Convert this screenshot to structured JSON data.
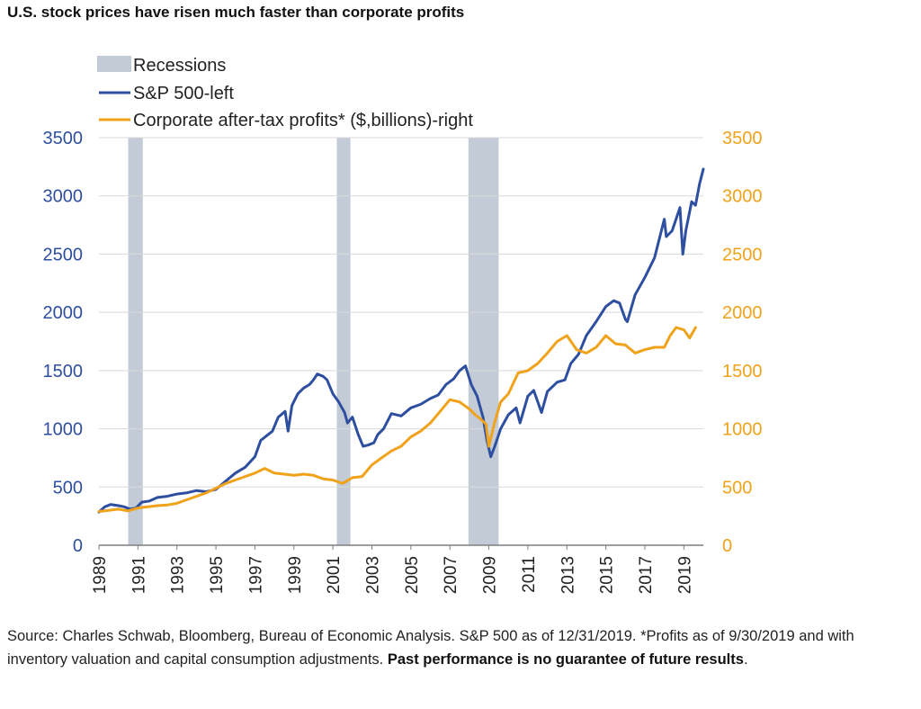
{
  "title": "U.S. stock prices have risen much faster than corporate profits",
  "source": {
    "text": "Source: Charles Schwab, Bloomberg, Bureau of Economic Analysis. S&P 500 as of 12/31/2019. *Profits as of 9/30/2019 and with inventory valuation and capital consumption adjustments. ",
    "bold": "Past performance is no guarantee of future results",
    "end": "."
  },
  "colors": {
    "sp500": "#2e4fa0",
    "profits": "#f0a21a",
    "recession": "#c3ccd6",
    "grid": "#d9d9d9",
    "left_axis": "#2e4fa0",
    "right_axis": "#f0a21a"
  },
  "chart_data": {
    "type": "line",
    "legend_position": "top-left",
    "legend": [
      {
        "key": "recession",
        "label": "Recessions"
      },
      {
        "key": "sp500",
        "label": "S&P 500-left"
      },
      {
        "key": "profits",
        "label": "Corporate after-tax profits* ($,billions)-right"
      }
    ],
    "x_ticks": [
      "1989",
      "1991",
      "1993",
      "1995",
      "1997",
      "1999",
      "2001",
      "2003",
      "2005",
      "2007",
      "2009",
      "2011",
      "2013",
      "2015",
      "2017",
      "2019"
    ],
    "xlim": [
      1989,
      2020
    ],
    "ylim_left": [
      0,
      3500
    ],
    "ylim_right": [
      0,
      3500
    ],
    "y_ticks_left": [
      "0",
      "500",
      "1000",
      "1500",
      "2000",
      "2500",
      "3000",
      "3500"
    ],
    "y_ticks_right": [
      "0",
      "500",
      "1000",
      "1500",
      "2000",
      "2500",
      "3000",
      "3500"
    ],
    "grid": true,
    "recessions": [
      [
        1990.5,
        1991.25
      ],
      [
        2001.2,
        2001.9
      ],
      [
        2007.95,
        2009.5
      ]
    ],
    "series": [
      {
        "name": "S&P 500-left",
        "axis": "left",
        "x": [
          1989.0,
          1989.3,
          1989.6,
          1990.0,
          1990.3,
          1990.6,
          1990.9,
          1991.2,
          1991.6,
          1992.0,
          1992.5,
          1993.0,
          1993.5,
          1994.0,
          1994.5,
          1995.0,
          1995.5,
          1996.0,
          1996.5,
          1997.0,
          1997.3,
          1997.6,
          1997.9,
          1998.2,
          1998.55,
          1998.7,
          1998.9,
          1999.2,
          1999.5,
          1999.8,
          2000.0,
          2000.2,
          2000.5,
          2000.7,
          2001.0,
          2001.3,
          2001.6,
          2001.75,
          2002.0,
          2002.3,
          2002.55,
          2002.8,
          2003.1,
          2003.3,
          2003.6,
          2004.0,
          2004.5,
          2005.0,
          2005.5,
          2006.0,
          2006.4,
          2006.8,
          2007.2,
          2007.5,
          2007.8,
          2008.1,
          2008.4,
          2008.7,
          2008.9,
          2009.1,
          2009.3,
          2009.6,
          2010.0,
          2010.4,
          2010.6,
          2011.0,
          2011.3,
          2011.7,
          2012.0,
          2012.5,
          2012.9,
          2013.2,
          2013.6,
          2014.0,
          2014.5,
          2015.0,
          2015.4,
          2015.7,
          2016.0,
          2016.1,
          2016.5,
          2017.0,
          2017.5,
          2018.0,
          2018.1,
          2018.4,
          2018.8,
          2018.95,
          2019.1,
          2019.4,
          2019.6,
          2019.8,
          2020.0
        ],
        "values": [
          285,
          330,
          350,
          340,
          330,
          310,
          320,
          370,
          380,
          410,
          420,
          440,
          450,
          470,
          460,
          480,
          550,
          620,
          670,
          760,
          900,
          940,
          980,
          1100,
          1150,
          980,
          1200,
          1300,
          1350,
          1380,
          1420,
          1470,
          1450,
          1420,
          1300,
          1230,
          1140,
          1050,
          1100,
          950,
          850,
          860,
          880,
          950,
          1000,
          1130,
          1110,
          1180,
          1210,
          1260,
          1290,
          1380,
          1430,
          1500,
          1540,
          1380,
          1280,
          1100,
          900,
          760,
          850,
          1000,
          1120,
          1180,
          1050,
          1280,
          1330,
          1140,
          1320,
          1400,
          1420,
          1560,
          1640,
          1800,
          1920,
          2050,
          2100,
          2080,
          1940,
          1920,
          2150,
          2300,
          2470,
          2800,
          2650,
          2700,
          2900,
          2500,
          2700,
          2950,
          2920,
          3100,
          3230
        ]
      },
      {
        "name": "Corporate after-tax profits* ($,billions)-right",
        "axis": "right",
        "x": [
          1989.0,
          1989.5,
          1990.0,
          1990.5,
          1991.0,
          1991.5,
          1992.0,
          1992.5,
          1993.0,
          1993.5,
          1994.0,
          1994.5,
          1995.0,
          1995.5,
          1996.0,
          1996.5,
          1997.0,
          1997.5,
          1998.0,
          1998.5,
          1999.0,
          1999.5,
          2000.0,
          2000.5,
          2001.0,
          2001.5,
          2002.0,
          2002.5,
          2003.0,
          2003.5,
          2004.0,
          2004.5,
          2005.0,
          2005.5,
          2006.0,
          2006.5,
          2007.0,
          2007.5,
          2008.0,
          2008.3,
          2008.6,
          2008.85,
          2009.0,
          2009.3,
          2009.6,
          2010.0,
          2010.5,
          2011.0,
          2011.5,
          2012.0,
          2012.5,
          2013.0,
          2013.5,
          2014.0,
          2014.5,
          2015.0,
          2015.5,
          2016.0,
          2016.5,
          2017.0,
          2017.5,
          2018.0,
          2018.3,
          2018.6,
          2019.0,
          2019.3,
          2019.6
        ],
        "values": [
          290,
          300,
          310,
          295,
          320,
          330,
          340,
          345,
          360,
          390,
          420,
          450,
          490,
          530,
          560,
          590,
          620,
          660,
          620,
          610,
          600,
          610,
          600,
          570,
          560,
          530,
          580,
          590,
          690,
          750,
          810,
          850,
          930,
          980,
          1050,
          1150,
          1250,
          1230,
          1170,
          1120,
          1080,
          1040,
          850,
          1060,
          1230,
          1300,
          1480,
          1500,
          1560,
          1650,
          1750,
          1800,
          1680,
          1650,
          1700,
          1800,
          1730,
          1720,
          1650,
          1680,
          1700,
          1700,
          1800,
          1870,
          1850,
          1780,
          1870
        ]
      }
    ]
  }
}
